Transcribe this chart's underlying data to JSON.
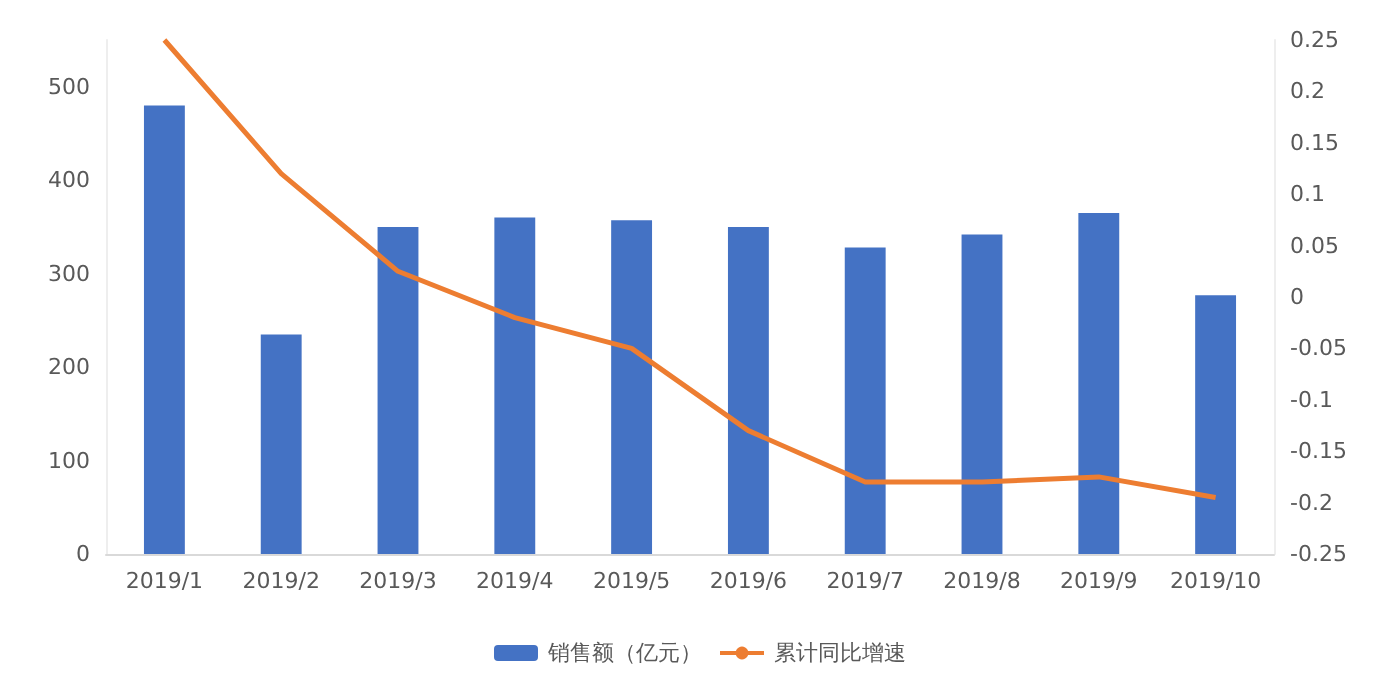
{
  "chart_data": {
    "type": "bar",
    "categories": [
      "2019/1",
      "2019/2",
      "2019/3",
      "2019/4",
      "2019/5",
      "2019/6",
      "2019/7",
      "2019/8",
      "2019/9",
      "2019/10"
    ],
    "series": [
      {
        "name": "销售额（亿元）",
        "color": "#4472c4",
        "values": [
          480,
          235,
          350,
          360,
          357,
          350,
          328,
          342,
          365,
          277
        ]
      },
      {
        "name": "累计同比增速",
        "type": "line",
        "axis": "y2",
        "color": "#ed7d31",
        "values": [
          0.25,
          0.12,
          0.025,
          -0.02,
          -0.05,
          -0.13,
          -0.18,
          -0.18,
          -0.175,
          -0.195
        ]
      }
    ],
    "ylim": [
      0,
      550
    ],
    "yticks": [
      0,
      100,
      200,
      300,
      400,
      500
    ],
    "y2lim": [
      -0.25,
      0.25
    ],
    "y2ticks": [
      -0.25,
      -0.2,
      -0.15,
      -0.1,
      -0.05,
      0,
      0.05,
      0.1,
      0.15,
      0.2,
      0.25
    ],
    "grid": false,
    "legend": "bottom",
    "marker": "none"
  }
}
